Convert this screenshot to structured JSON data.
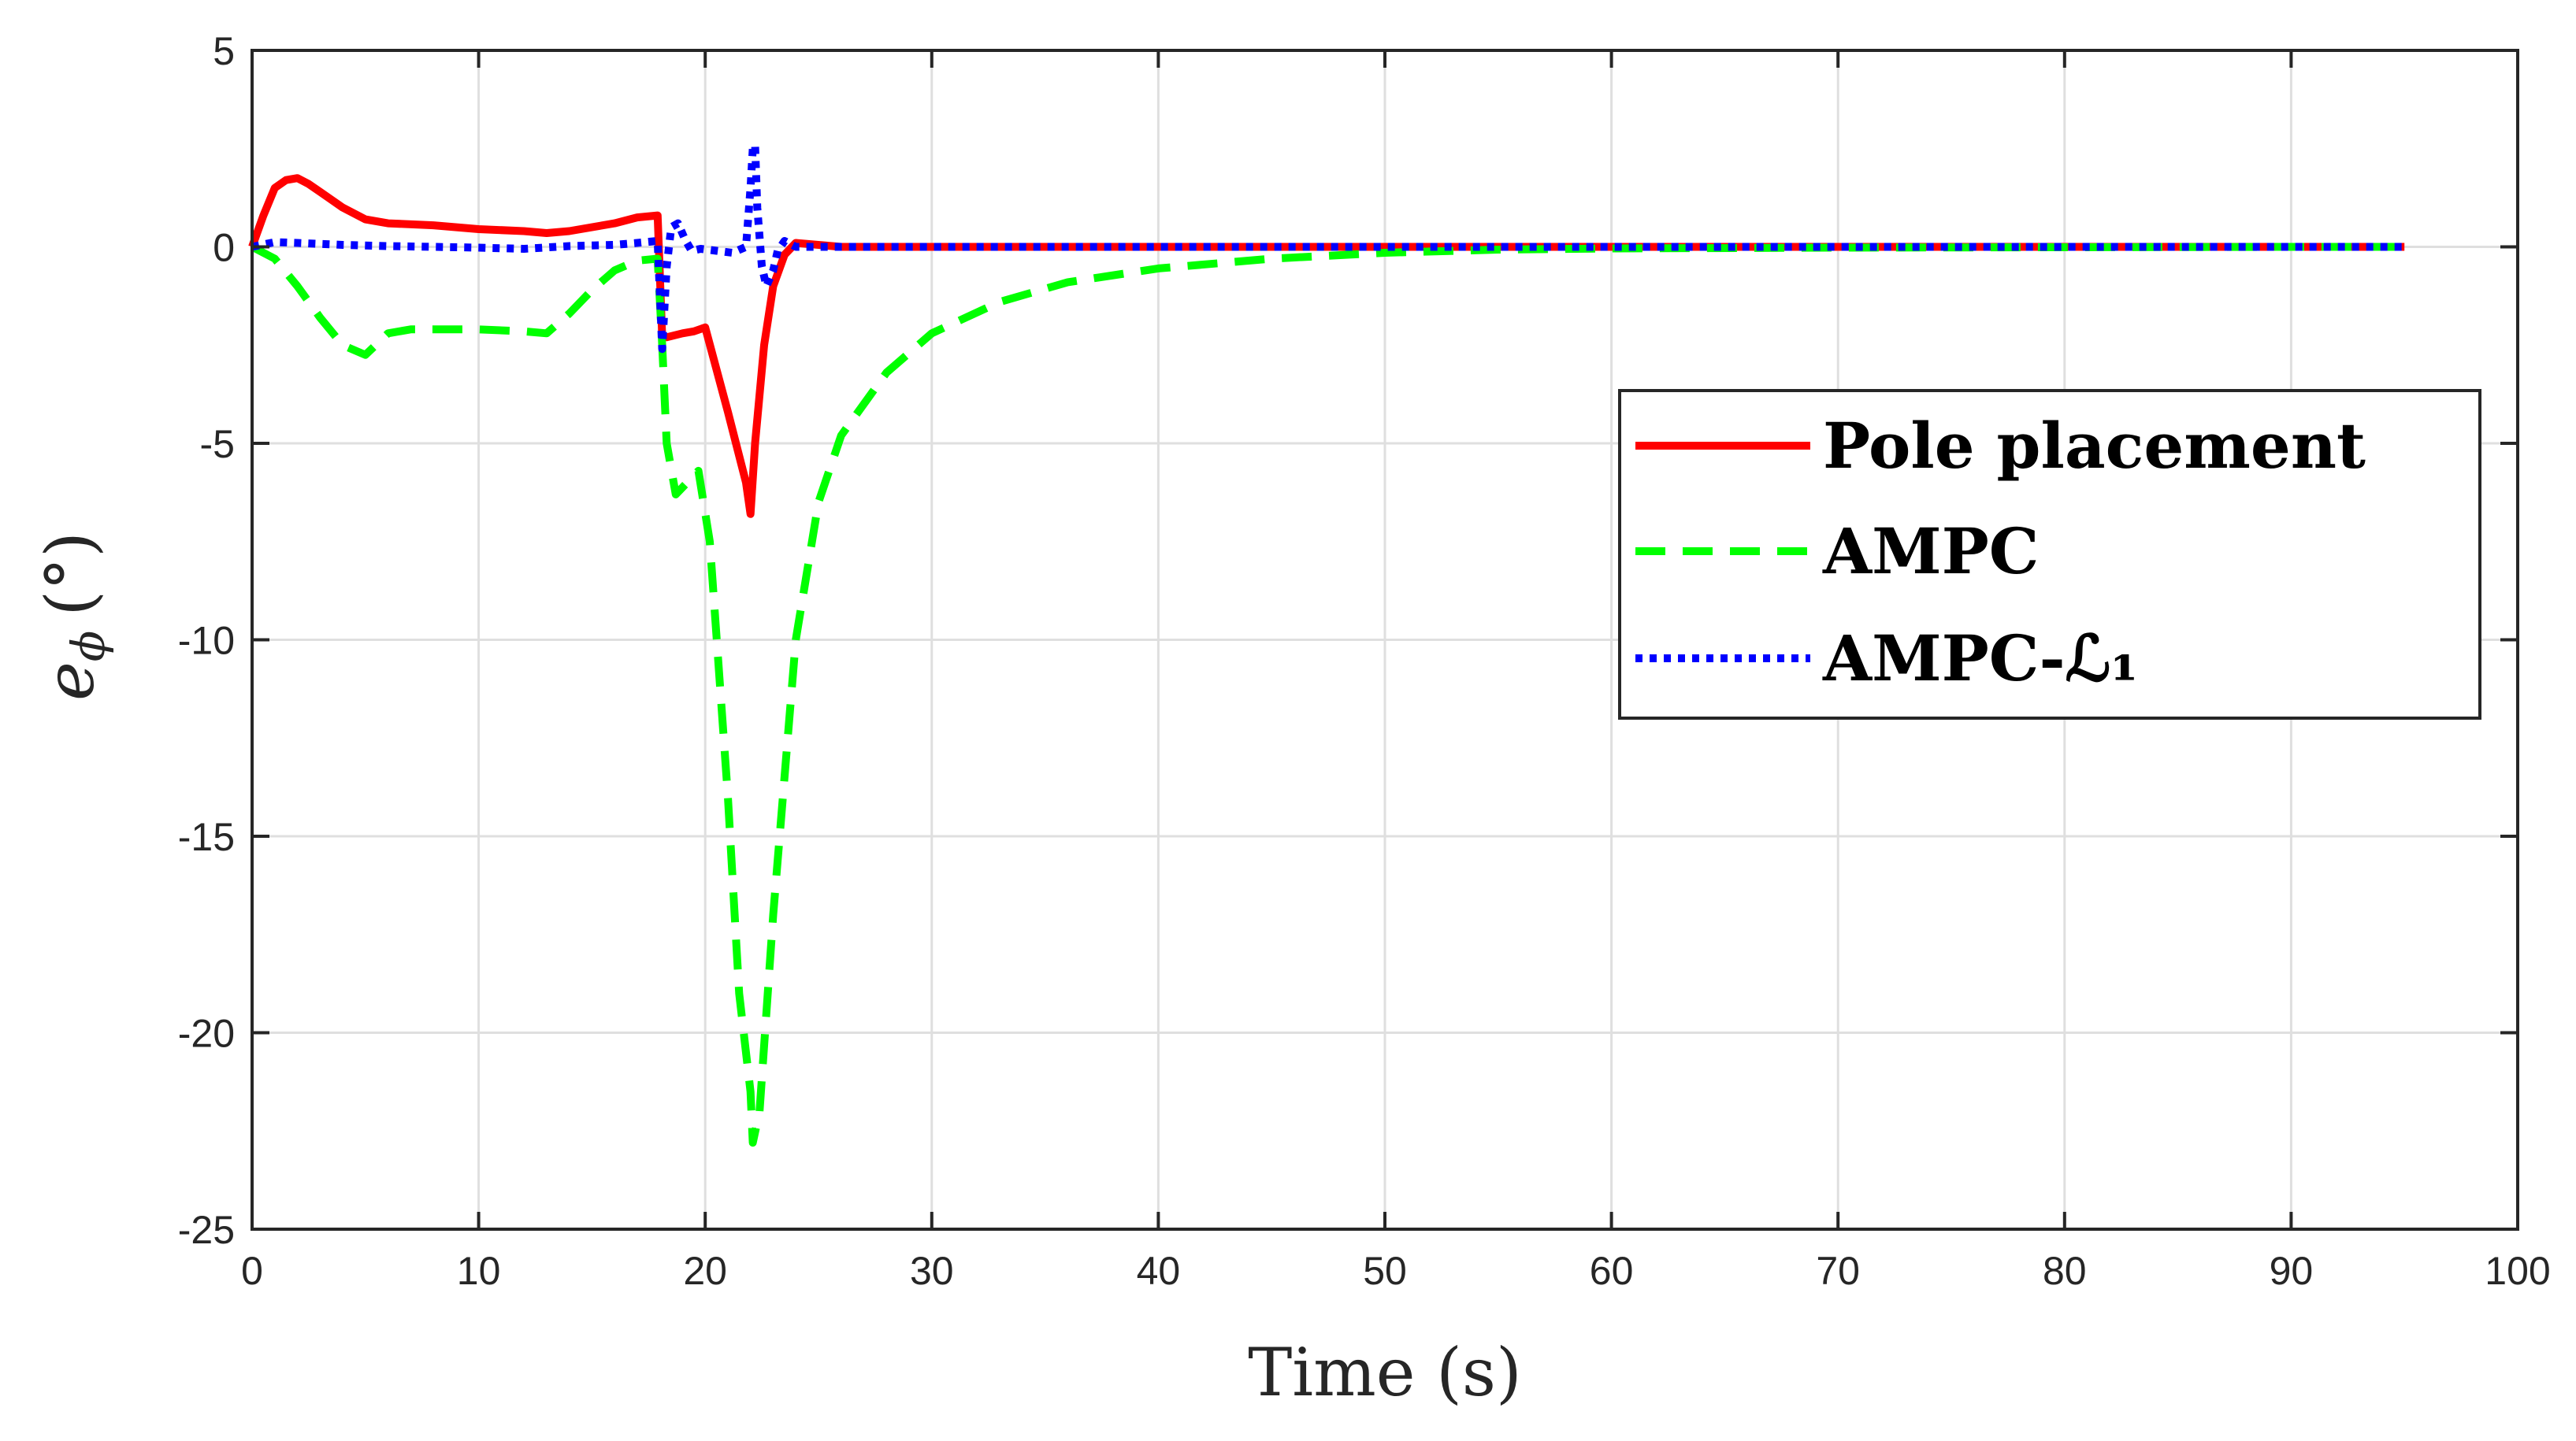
{
  "chart_data": {
    "type": "line",
    "title": "",
    "xlabel": "Time (s)",
    "ylabel": "e_ϕ (°)",
    "ylabel_main": "e",
    "ylabel_sub": "ϕ",
    "ylabel_unit": "(°)",
    "xlim": [
      0,
      100
    ],
    "ylim": [
      -25,
      5
    ],
    "xticks": [
      0,
      10,
      20,
      30,
      40,
      50,
      60,
      70,
      80,
      90,
      100
    ],
    "yticks": [
      -25,
      -20,
      -15,
      -10,
      -5,
      0,
      5
    ],
    "xtick_labels": [
      "0",
      "10",
      "20",
      "30",
      "40",
      "50",
      "60",
      "70",
      "80",
      "90",
      "100"
    ],
    "ytick_labels": [
      "-25",
      "-20",
      "-15",
      "-10",
      "-5",
      "0",
      "5"
    ],
    "grid": true,
    "legend_position": "right",
    "series": [
      {
        "name": "Pole placement",
        "color": "#ff0000",
        "style": "solid",
        "x": [
          0,
          0.5,
          1,
          1.5,
          2,
          2.5,
          3,
          4,
          5,
          6,
          8,
          10,
          12,
          13,
          14,
          16,
          17,
          17.9,
          18.1,
          18.3,
          19,
          19.5,
          20,
          21,
          21.8,
          22,
          22.2,
          22.6,
          23,
          23.5,
          24,
          26,
          30,
          40,
          50,
          60,
          70,
          80,
          90,
          95
        ],
        "y": [
          0,
          0.8,
          1.5,
          1.7,
          1.75,
          1.6,
          1.4,
          1.0,
          0.7,
          0.6,
          0.55,
          0.45,
          0.4,
          0.35,
          0.4,
          0.6,
          0.75,
          0.8,
          -2.3,
          -2.3,
          -2.2,
          -2.15,
          -2.05,
          -4.2,
          -6.0,
          -6.8,
          -5.0,
          -2.5,
          -1.0,
          -0.2,
          0.1,
          0,
          0,
          0,
          0,
          0,
          0,
          0,
          0,
          0
        ]
      },
      {
        "name": "AMPC",
        "color": "#00ff00",
        "style": "dashed",
        "x": [
          0,
          1,
          2,
          3,
          4,
          5,
          6,
          7,
          8,
          10,
          12,
          13,
          14,
          15,
          16,
          17,
          17.9,
          18.1,
          18.3,
          18.7,
          19.2,
          19.7,
          20.2,
          21,
          21.5,
          22,
          22.1,
          22.4,
          23,
          24,
          25,
          26,
          28,
          30,
          33,
          36,
          40,
          45,
          50,
          55,
          60,
          70,
          80,
          90,
          95
        ],
        "y": [
          0,
          -0.3,
          -1.0,
          -1.8,
          -2.5,
          -2.75,
          -2.2,
          -2.1,
          -2.1,
          -2.1,
          -2.15,
          -2.2,
          -1.7,
          -1.1,
          -0.6,
          -0.35,
          -0.3,
          -2.5,
          -5.0,
          -6.3,
          -6.0,
          -5.7,
          -7.5,
          -14.0,
          -19.0,
          -21.5,
          -22.8,
          -22.0,
          -17.0,
          -10.0,
          -6.5,
          -4.8,
          -3.2,
          -2.2,
          -1.4,
          -0.9,
          -0.55,
          -0.3,
          -0.15,
          -0.07,
          -0.04,
          -0.02,
          -0.01,
          0,
          0
        ]
      },
      {
        "name": "AMPC-ℒ₁",
        "color": "#0000ff",
        "style": "dotted",
        "x": [
          0,
          1,
          2,
          4,
          6,
          8,
          10,
          12,
          14,
          16,
          17,
          17.9,
          18.1,
          18.3,
          18.5,
          18.8,
          19.1,
          19.4,
          19.8,
          20.5,
          21.2,
          21.8,
          22.0,
          22.1,
          22.2,
          22.3,
          22.5,
          22.7,
          23.0,
          23.2,
          23.5,
          24,
          25,
          30,
          40,
          50,
          60,
          70,
          80,
          90,
          95
        ],
        "y": [
          0,
          0.12,
          0.1,
          0.05,
          0.02,
          0,
          -0.02,
          -0.05,
          0.02,
          0.05,
          0.1,
          0.15,
          -2.6,
          -0.5,
          0.5,
          0.6,
          0.2,
          -0.1,
          -0.05,
          -0.1,
          -0.15,
          0,
          1.5,
          2.5,
          2.6,
          1.0,
          -0.5,
          -1.0,
          -0.6,
          -0.1,
          0.15,
          0,
          0,
          0,
          0,
          0,
          0,
          0,
          0,
          0,
          0
        ]
      }
    ]
  }
}
